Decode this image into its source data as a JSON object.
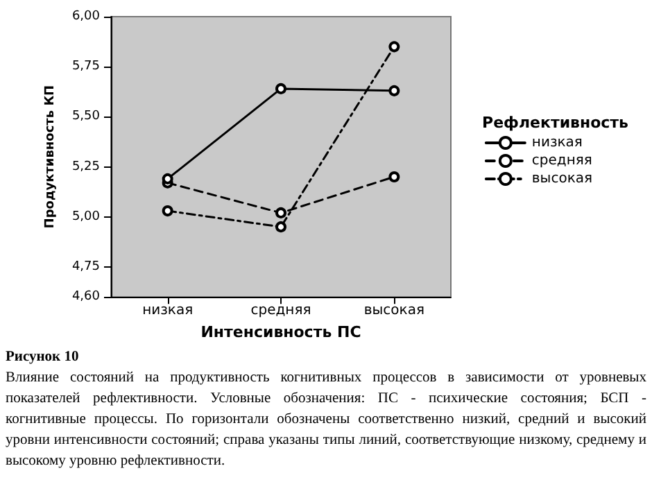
{
  "chart_data": {
    "type": "line",
    "xlabel": "Интенсивность ПС",
    "ylabel": "Продуктивность КП",
    "legend_title": "Рефлективность",
    "categories": [
      "низкая",
      "средняя",
      "высокая"
    ],
    "series": [
      {
        "name": "низкая",
        "color": "#000000",
        "line_style": "solid",
        "values": [
          5.19,
          5.64,
          5.63
        ]
      },
      {
        "name": "средняя",
        "color": "#000000",
        "line_style": "dashed",
        "values": [
          5.17,
          5.02,
          5.2
        ]
      },
      {
        "name": "высокая",
        "color": "#000000",
        "line_style": "dotted",
        "values": [
          5.03,
          4.95,
          5.85
        ]
      }
    ],
    "ylim": [
      4.6,
      6.0
    ],
    "yticks": [
      {
        "value": 4.6,
        "label": "4,60"
      },
      {
        "value": 4.75,
        "label": "4,75"
      },
      {
        "value": 5.0,
        "label": "5,00"
      },
      {
        "value": 5.25,
        "label": "5,25"
      },
      {
        "value": 5.5,
        "label": "5,50"
      },
      {
        "value": 5.75,
        "label": "5,75"
      },
      {
        "value": 6.0,
        "label": "6,00"
      }
    ],
    "grid": false,
    "legend": "right",
    "marker": "circle",
    "annotations": [
      "Рисунок 10",
      "Влияние состояний на продуктивность когнитивных процессов в зависимости от уровневых показателей рефлективности. Условные обозначения: ПС - психические состояния; БСП - когнитивные процессы. По горизонтали обозначены соответственно низкий, средний и высокий уровни интенсивности состояний; справа указаны типы линий, соответствующие низкому, среднему и высокому уровню рефлективности."
    ]
  }
}
